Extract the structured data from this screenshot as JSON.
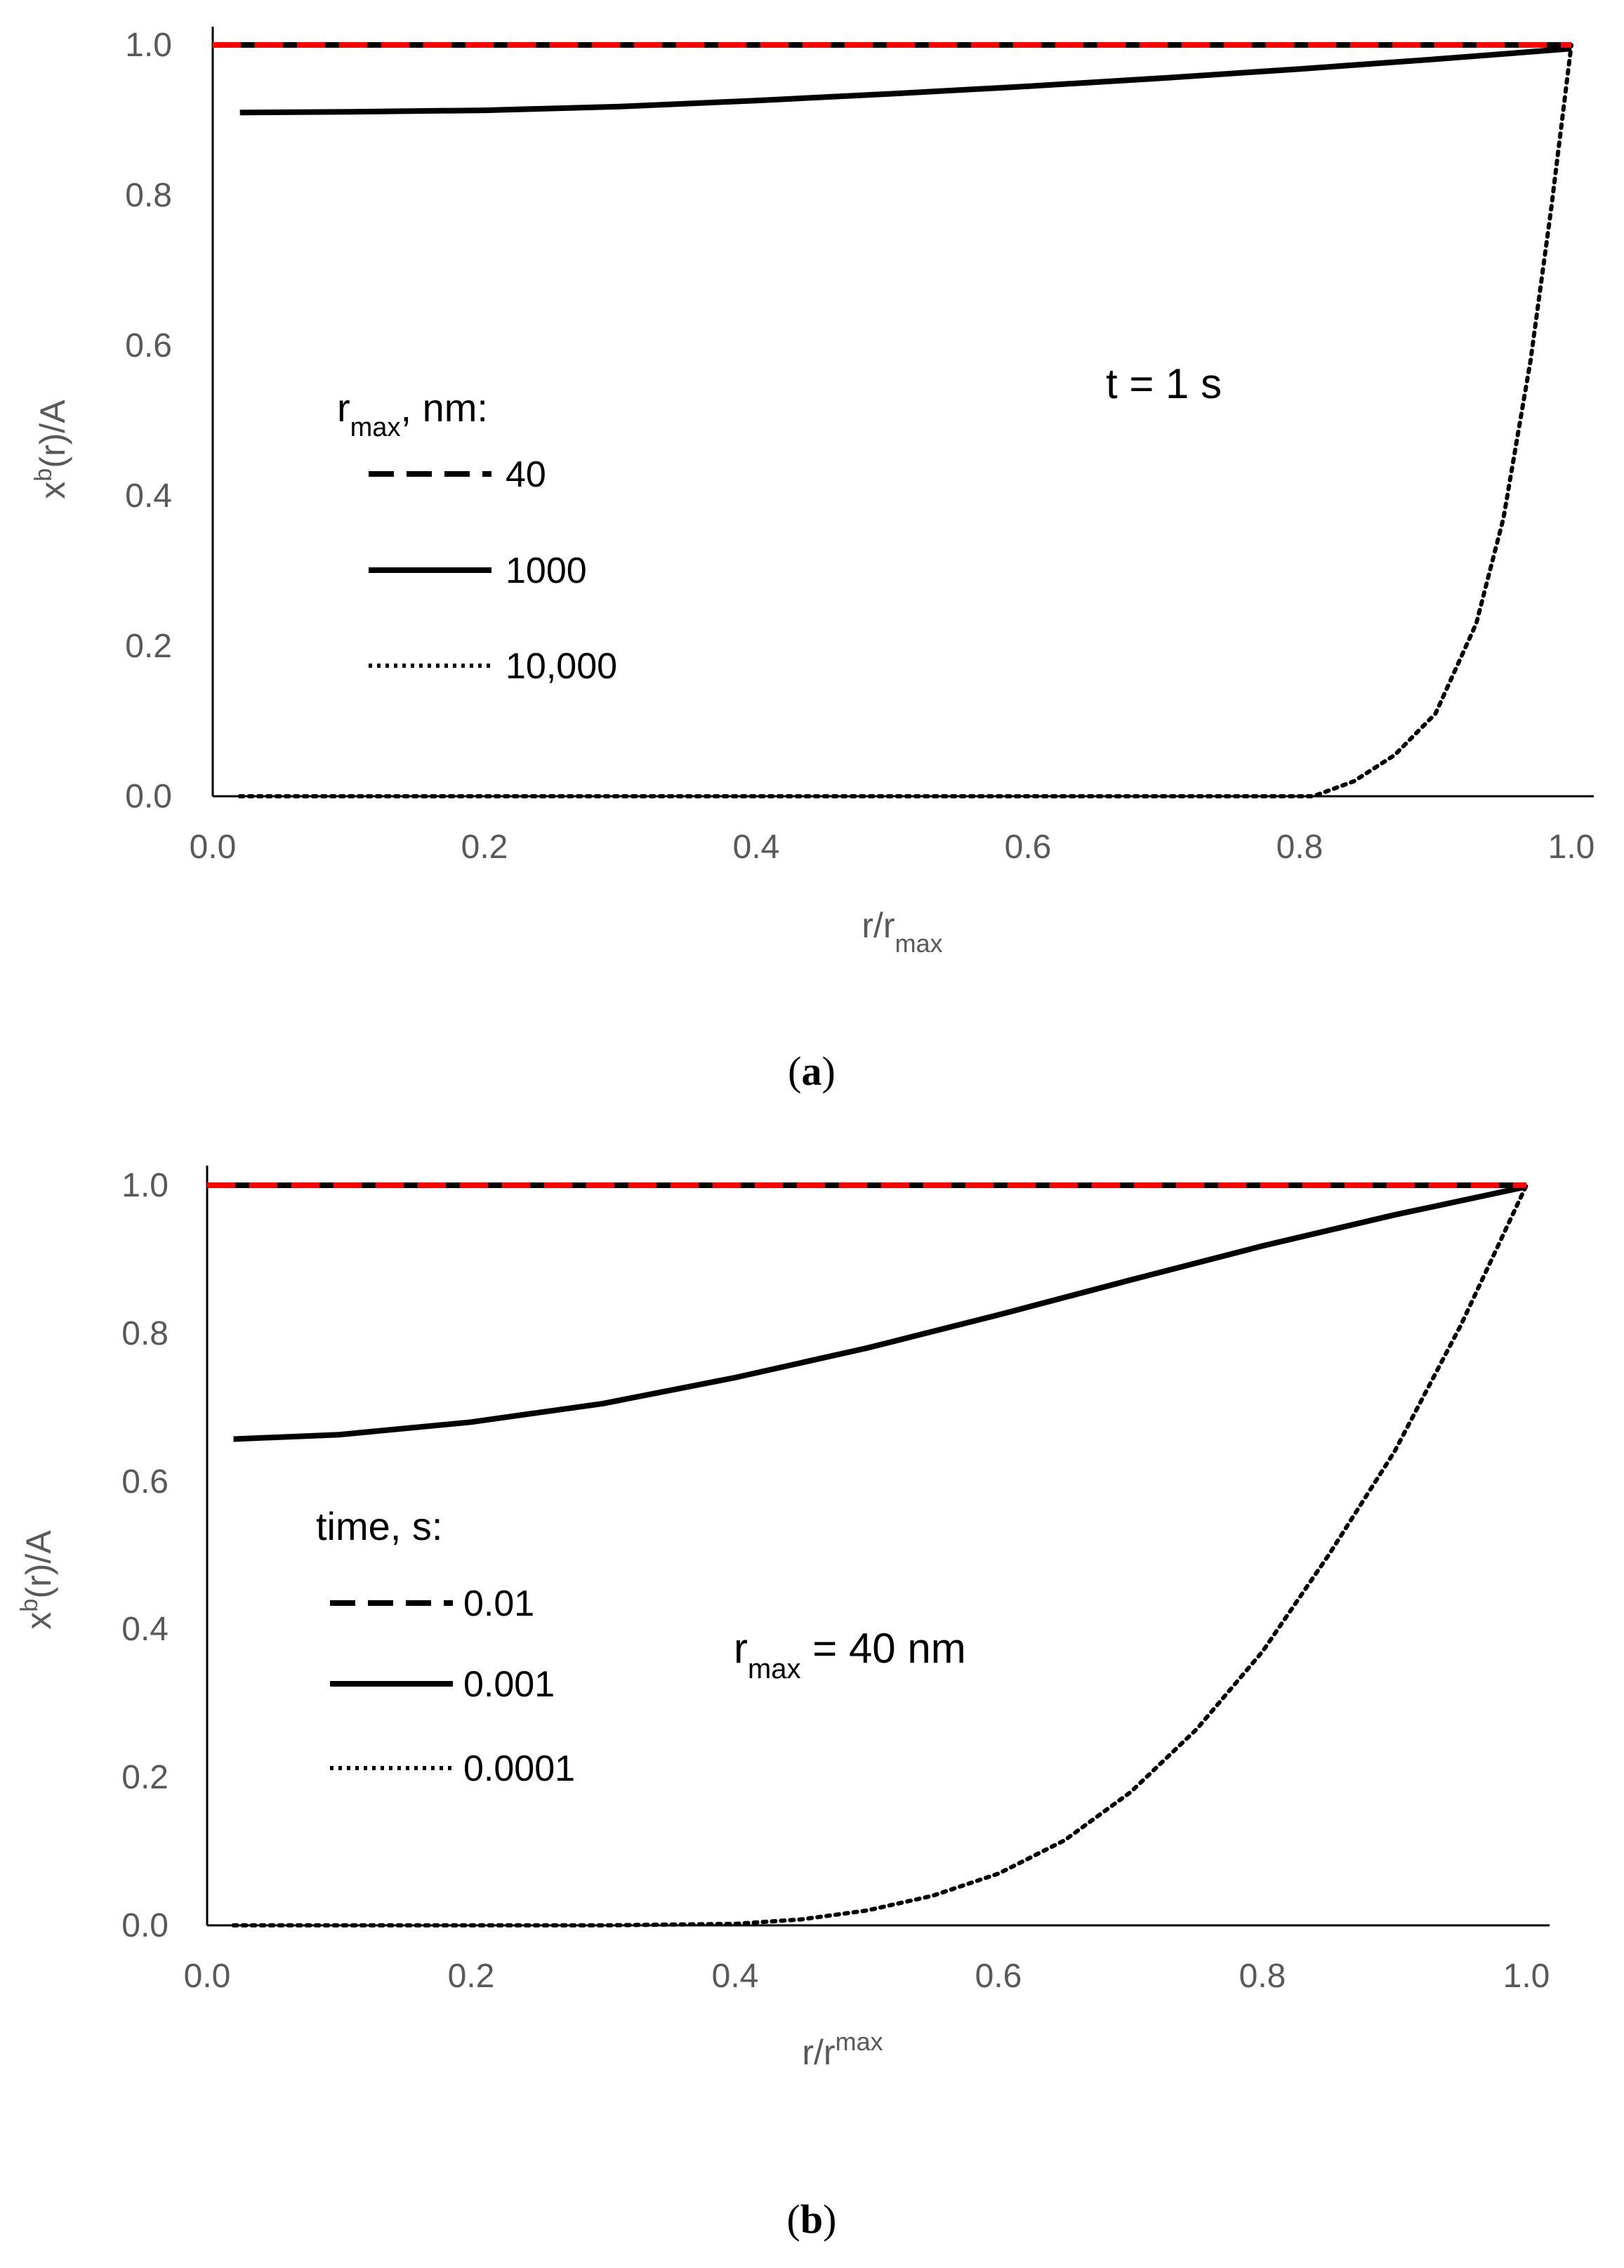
{
  "chart_data": [
    {
      "type": "line",
      "panel": "a",
      "caption": {
        "open": "(",
        "letter": "a",
        "close": ")"
      },
      "ylabel": {
        "base": "x",
        "sup": "b",
        "rest": "(r)/A"
      },
      "xlabel": {
        "base": "r/r",
        "sub": "max"
      },
      "xlim": [
        0.0,
        1.0
      ],
      "ylim": [
        0.0,
        1.0
      ],
      "xticks": [
        "0.0",
        "0.2",
        "0.4",
        "0.6",
        "0.8",
        "1.0"
      ],
      "yticks": [
        "0.0",
        "0.2",
        "0.4",
        "0.6",
        "0.8",
        "1.0"
      ],
      "annotation": {
        "text": "t = 1 s"
      },
      "legend": {
        "title": {
          "base": "r",
          "sub": "max",
          "rest": ", nm:"
        },
        "placement": "left-middle"
      },
      "series": [
        {
          "name": "40",
          "style": "dashed",
          "color": "#000000",
          "x": [
            0.02,
            0.2,
            0.4,
            0.6,
            0.8,
            1.0
          ],
          "y": [
            1.0,
            1.0,
            1.0,
            1.0,
            1.0,
            1.0
          ]
        },
        {
          "name": "1000",
          "style": "solid",
          "color": "#000000",
          "x": [
            0.02,
            0.1,
            0.2,
            0.3,
            0.4,
            0.5,
            0.6,
            0.7,
            0.8,
            0.9,
            1.0
          ],
          "y": [
            0.91,
            0.911,
            0.913,
            0.918,
            0.926,
            0.935,
            0.945,
            0.956,
            0.968,
            0.981,
            0.995
          ]
        },
        {
          "name": "10,000",
          "style": "dotted",
          "color": "#000000",
          "x": [
            0.02,
            0.2,
            0.4,
            0.6,
            0.75,
            0.81,
            0.84,
            0.87,
            0.9,
            0.93,
            0.95,
            0.97,
            0.985,
            1.0
          ],
          "y": [
            0.0,
            0.0,
            0.0,
            0.0,
            0.0,
            0.0,
            0.02,
            0.055,
            0.11,
            0.23,
            0.37,
            0.58,
            0.78,
            1.0
          ]
        }
      ],
      "reference_line": {
        "y": 1.0,
        "style": "dashed",
        "color": "#ff0000"
      }
    },
    {
      "type": "line",
      "panel": "b",
      "caption": {
        "open": "(",
        "letter": "b",
        "close": ")"
      },
      "ylabel": {
        "base": "x",
        "sup": "b",
        "rest": "(r)/A"
      },
      "xlabel": {
        "base": "r/r",
        "sup": "max"
      },
      "xlim": [
        0.0,
        1.0
      ],
      "ylim": [
        0.0,
        1.0
      ],
      "xticks": [
        "0.0",
        "0.2",
        "0.4",
        "0.6",
        "0.8",
        "1.0"
      ],
      "yticks": [
        "0.0",
        "0.2",
        "0.4",
        "0.6",
        "0.8",
        "1.0"
      ],
      "annotation": {
        "base": "r",
        "sub": "max",
        "rest": " = 40 nm"
      },
      "legend": {
        "title": {
          "text": "time, s:"
        },
        "placement": "left-middle"
      },
      "series": [
        {
          "name": "0.01",
          "style": "dashed",
          "color": "#000000",
          "x": [
            0.02,
            0.2,
            0.4,
            0.6,
            0.8,
            1.0
          ],
          "y": [
            1.0,
            1.0,
            1.0,
            1.0,
            1.0,
            1.0
          ]
        },
        {
          "name": "0.001",
          "style": "solid",
          "color": "#000000",
          "x": [
            0.02,
            0.1,
            0.2,
            0.3,
            0.4,
            0.5,
            0.6,
            0.7,
            0.8,
            0.9,
            1.0
          ],
          "y": [
            0.657,
            0.663,
            0.68,
            0.705,
            0.74,
            0.78,
            0.825,
            0.872,
            0.918,
            0.96,
            0.998
          ]
        },
        {
          "name": "0.0001",
          "style": "dotted",
          "color": "#000000",
          "x": [
            0.02,
            0.2,
            0.3,
            0.4,
            0.45,
            0.5,
            0.55,
            0.6,
            0.65,
            0.7,
            0.75,
            0.8,
            0.85,
            0.9,
            0.95,
            1.0
          ],
          "y": [
            0.0,
            0.0,
            0.0,
            0.002,
            0.008,
            0.02,
            0.04,
            0.07,
            0.115,
            0.18,
            0.265,
            0.37,
            0.5,
            0.64,
            0.81,
            1.0
          ]
        }
      ],
      "reference_line": {
        "y": 1.0,
        "style": "dashed",
        "color": "#ff0000"
      }
    }
  ]
}
